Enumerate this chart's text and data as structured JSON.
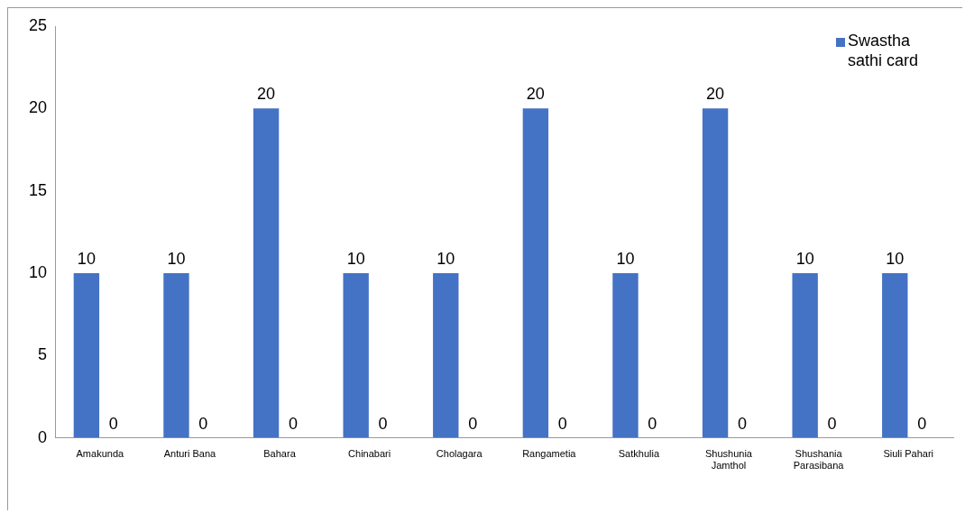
{
  "chart_data": {
    "type": "bar",
    "categories": [
      "Amakunda",
      "Anturi Bana",
      "Bahara",
      "Chinabari",
      "Cholagara",
      "Rangametia",
      "Satkhulia",
      "Shushunia Jamthol",
      "Shushania Parasibana",
      "Siuli Pahari"
    ],
    "series": [
      {
        "name": "Swastha sathi card",
        "color": "#4472c4",
        "values": [
          10,
          10,
          20,
          10,
          10,
          20,
          10,
          20,
          10,
          10
        ]
      },
      {
        "color": "#ed7d31",
        "values": [
          0,
          0,
          0,
          0,
          0,
          0,
          0,
          0,
          0,
          0
        ]
      }
    ],
    "ylim": [
      0,
      25
    ],
    "yticks": [
      0,
      5,
      10,
      15,
      20,
      25
    ],
    "grid": false,
    "legend": "top right",
    "data_labels": true
  }
}
